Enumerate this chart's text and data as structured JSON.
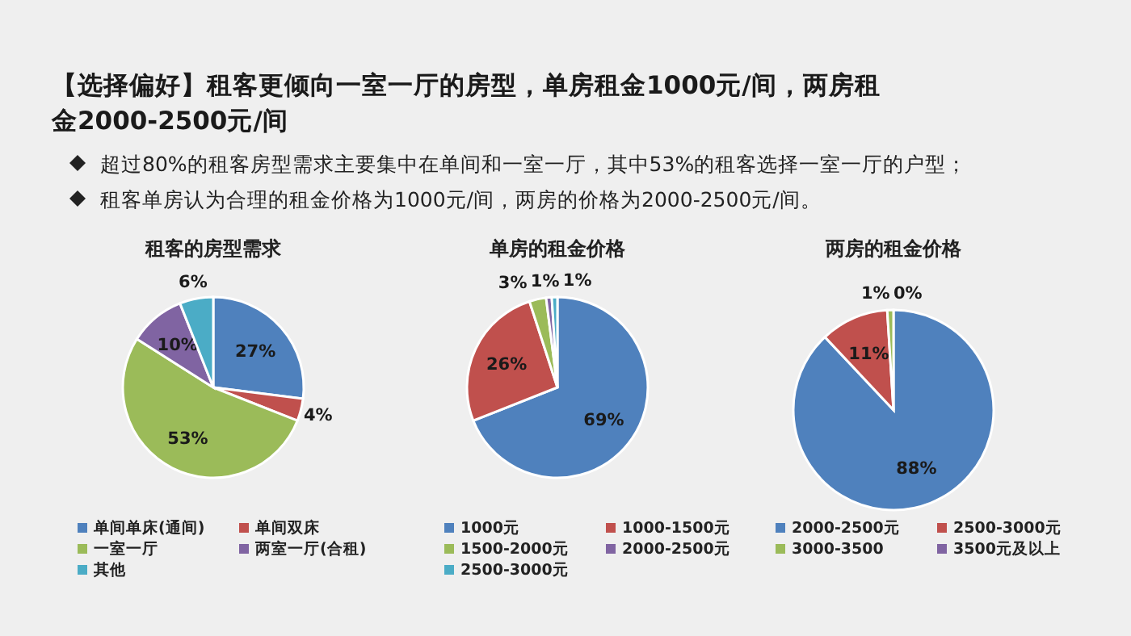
{
  "chart_data": [
    {
      "type": "other",
      "title": "【选择偏好】租客更倾向一室一厅的房型，单房租金1000元/间，两房租金2000-2500元/间",
      "annotations": [
        "超过80%的租客房型需求主要集中在单间和一室一厅，其中53%的租客选择一室一厅的户型；",
        "租客单房认为合理的租金价格为1000元/间，两房的价格为2000-2500元/间。"
      ]
    },
    {
      "type": "pie",
      "title": "租客的房型需求",
      "legend": "bottom",
      "categories": [
        "单间单床(通间)",
        "单间双床",
        "一室一厅",
        "两室一厅(合租)",
        "其他"
      ],
      "values": [
        27,
        4,
        53,
        10,
        6
      ],
      "value_labels": [
        "27%",
        "4%",
        "53%",
        "10%",
        "6%"
      ],
      "colors": [
        "#4f81bd",
        "#c0504d",
        "#9bbb59",
        "#8064a2",
        "#4bacc6"
      ]
    },
    {
      "type": "pie",
      "title": "单房的租金价格",
      "legend": "bottom",
      "categories": [
        "1000元",
        "1000-1500元",
        "1500-2000元",
        "2000-2500元",
        "2500-3000元"
      ],
      "values": [
        69,
        26,
        3,
        1,
        1
      ],
      "value_labels": [
        "69%",
        "26%",
        "3%",
        "1%",
        "1%"
      ],
      "colors": [
        "#4f81bd",
        "#c0504d",
        "#9bbb59",
        "#8064a2",
        "#4bacc6"
      ]
    },
    {
      "type": "pie",
      "title": "两房的租金价格",
      "legend": "bottom",
      "categories": [
        "2000-2500元",
        "2500-3000元",
        "3000-3500",
        "3500元及以上"
      ],
      "values": [
        88,
        11,
        1,
        0
      ],
      "value_labels": [
        "88%",
        "11%",
        "1%",
        "0%"
      ],
      "colors": [
        "#4f81bd",
        "#c0504d",
        "#9bbb59",
        "#8064a2"
      ]
    }
  ]
}
